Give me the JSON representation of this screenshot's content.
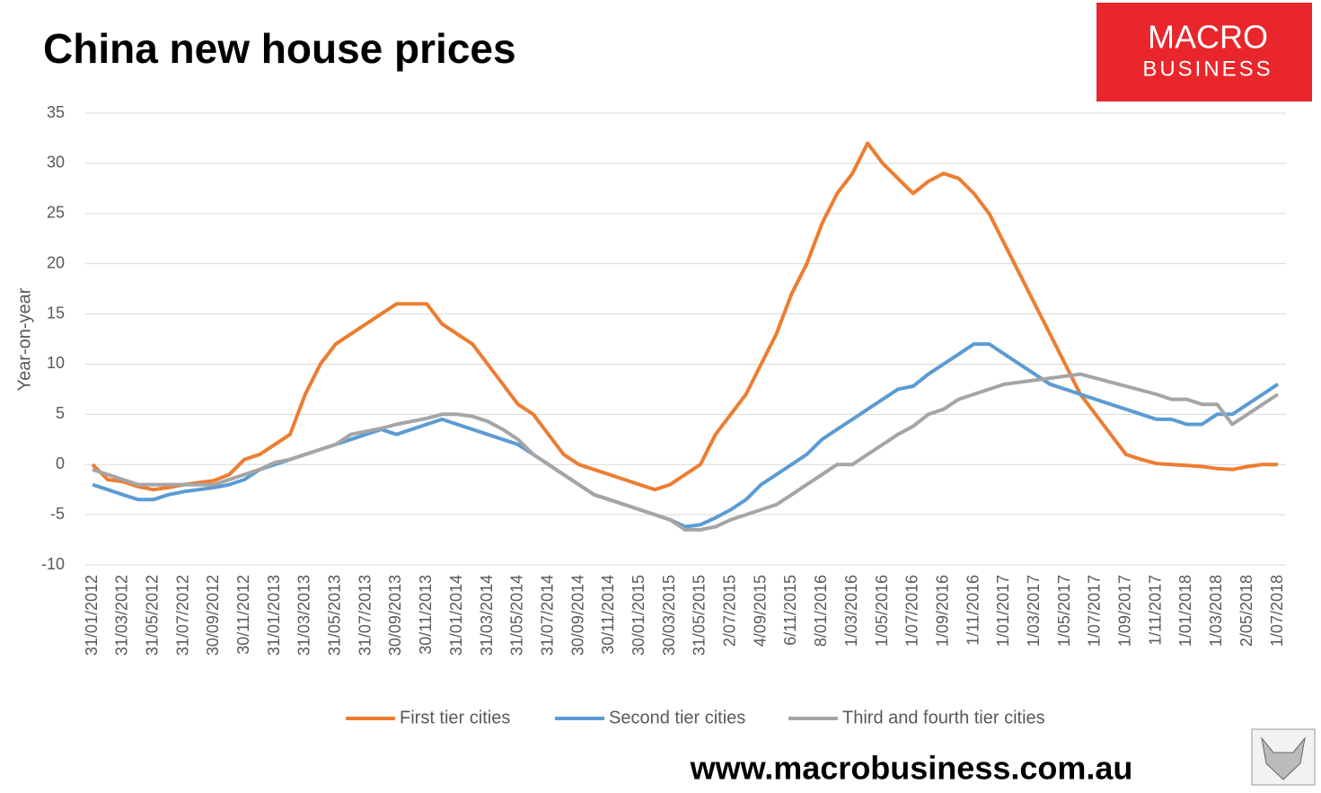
{
  "chart_data": {
    "type": "line",
    "title": "China new house prices",
    "y_label": "Year-on-year",
    "logo": {
      "top": "MACRO",
      "bottom": "BUSINESS"
    },
    "footer": "www.macrobusiness.com.au",
    "categories": [
      "31/01/2012",
      null,
      "31/03/2012",
      null,
      "31/05/2012",
      null,
      "31/07/2012",
      null,
      "30/09/2012",
      null,
      "30/11/2012",
      null,
      "31/01/2013",
      null,
      "31/03/2013",
      null,
      "31/05/2013",
      null,
      "31/07/2013",
      null,
      "30/09/2013",
      null,
      "30/11/2013",
      null,
      "31/01/2014",
      null,
      "31/03/2014",
      null,
      "31/05/2014",
      null,
      "31/07/2014",
      null,
      "30/09/2014",
      null,
      "30/11/2014",
      null,
      "30/01/2015",
      null,
      "30/03/2015",
      null,
      "31/05/2015",
      null,
      "2/07/2015",
      null,
      "4/09/2015",
      null,
      "6/11/2015",
      null,
      "8/01/2016",
      null,
      "1/03/2016",
      null,
      "1/05/2016",
      null,
      "1/07/2016",
      null,
      "1/09/2016",
      null,
      "1/11/2016",
      null,
      "1/01/2017",
      null,
      "1/03/2017",
      null,
      "1/05/2017",
      null,
      "1/07/2017",
      null,
      "1/09/2017",
      null,
      "1/11/2017",
      null,
      "1/01/2018",
      null,
      "1/03/2018",
      null,
      "2/05/2018",
      null,
      "1/07/2018"
    ],
    "series": [
      {
        "name": "First tier cities",
        "color": "#ed7d31",
        "values": [
          0,
          -1.5,
          -1.7,
          -2.2,
          -2.5,
          -2.3,
          -2,
          -1.8,
          -1.6,
          -1,
          0.5,
          1,
          2,
          3,
          7,
          10,
          12,
          13,
          14,
          15,
          16,
          16,
          16,
          14,
          13,
          12,
          10,
          8,
          6,
          5,
          3,
          1,
          0,
          -0.5,
          -1,
          -1.5,
          -2,
          -2.5,
          -2,
          -1,
          0,
          3,
          5,
          7,
          10,
          13,
          17,
          20,
          24,
          27,
          29,
          32,
          30,
          28.5,
          27,
          28.2,
          29,
          28.5,
          27,
          25,
          22,
          19,
          16,
          13,
          10,
          7,
          5,
          3,
          1,
          0.5,
          0.1,
          0,
          -0.1,
          -0.2,
          -0.4,
          -0.5,
          -0.2,
          0,
          0
        ]
      },
      {
        "name": "Second tier cities",
        "color": "#5b9bd5",
        "values": [
          -2,
          -2.5,
          -3,
          -3.5,
          -3.5,
          -3,
          -2.7,
          -2.5,
          -2.3,
          -2,
          -1.5,
          -0.5,
          0,
          0.5,
          1,
          1.5,
          2,
          2.5,
          3,
          3.5,
          3,
          3.5,
          4,
          4.5,
          4,
          3.5,
          3,
          2.5,
          2,
          1,
          0,
          -1,
          -2,
          -3,
          -3.5,
          -4,
          -4.5,
          -5,
          -5.5,
          -6.2,
          -6,
          -5.3,
          -4.5,
          -3.5,
          -2,
          -1,
          0,
          1,
          2.5,
          3.5,
          4.5,
          5.5,
          6.5,
          7.5,
          7.8,
          9,
          10,
          11,
          12,
          12,
          11,
          10,
          9,
          8,
          7.5,
          7,
          6.5,
          6,
          5.5,
          5,
          4.5,
          4.5,
          4,
          4,
          5,
          5,
          6,
          7,
          8
        ]
      },
      {
        "name": "Third and fourth tier cities",
        "color": "#a5a5a5",
        "values": [
          -0.5,
          -1,
          -1.5,
          -2,
          -2,
          -2,
          -2,
          -2,
          -2,
          -1.5,
          -1,
          -0.5,
          0.2,
          0.5,
          1,
          1.5,
          2,
          3,
          3.3,
          3.6,
          4,
          4.3,
          4.6,
          5,
          5,
          4.8,
          4.3,
          3.5,
          2.5,
          1,
          0,
          -1,
          -2,
          -3,
          -3.5,
          -4,
          -4.5,
          -5,
          -5.5,
          -6.5,
          -6.5,
          -6.2,
          -5.5,
          -5,
          -4.5,
          -4,
          -3,
          -2,
          -1,
          0,
          0,
          1,
          2,
          3,
          3.8,
          5,
          5.5,
          6.5,
          7,
          7.5,
          8,
          8.2,
          8.4,
          8.6,
          8.8,
          9,
          8.6,
          8.2,
          7.8,
          7.4,
          7,
          6.5,
          6.5,
          6,
          6,
          4,
          5,
          6,
          7
        ]
      }
    ],
    "ylim": [
      -10,
      35
    ],
    "yticks": [
      -10,
      -5,
      0,
      5,
      10,
      15,
      20,
      25,
      30,
      35
    ],
    "grid": true,
    "legend": "bottom"
  }
}
